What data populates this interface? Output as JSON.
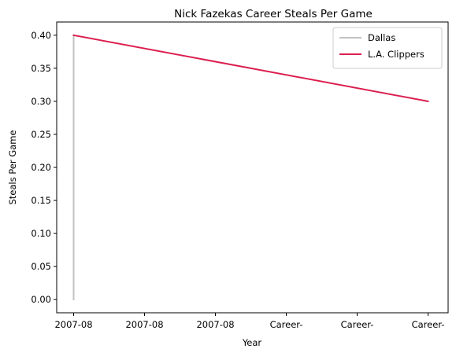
{
  "chart_data": {
    "type": "line",
    "title": "Nick Fazekas Career Steals Per Game",
    "xlabel": "Year",
    "ylabel": "Steals Per Game",
    "categories": [
      "2007-08",
      "2007-08",
      "2007-08",
      "Career-",
      "Career-",
      "Career-"
    ],
    "ylim": [
      -0.02,
      0.42
    ],
    "yticks": [
      "0.00",
      "0.05",
      "0.10",
      "0.15",
      "0.20",
      "0.25",
      "0.30",
      "0.35",
      "0.40"
    ],
    "grid": false,
    "legend_position": "top-right",
    "series": [
      {
        "name": "Dallas",
        "color": "#c0c0c0",
        "points": [
          [
            0,
            0.0
          ],
          [
            0,
            0.4
          ]
        ]
      },
      {
        "name": "L.A. Clippers",
        "color": "#dc1f4e",
        "points": [
          [
            0,
            0.4
          ],
          [
            5,
            0.3
          ]
        ]
      }
    ]
  }
}
